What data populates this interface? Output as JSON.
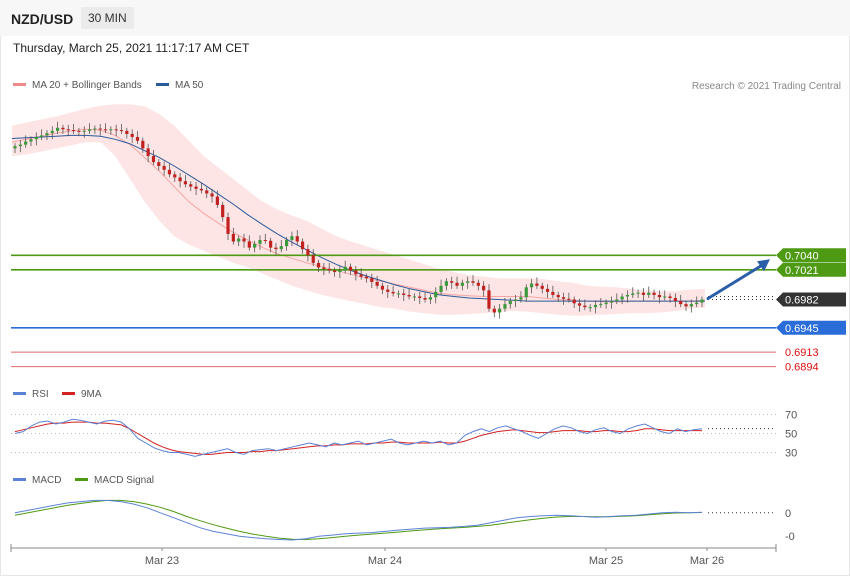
{
  "header": {
    "pair": "NZD/USD",
    "timeframe": "30 MIN",
    "timestamp": "Thursday, March 25, 2021 11:17:17 AM CET",
    "credit": "Research © 2021 Trading Central"
  },
  "colors": {
    "bollinger": "#f7a5a5",
    "band_fill": "#fde0e0",
    "ma50": "#2a5a9a",
    "up_candle": "#3a9a3a",
    "down_candle": "#c32020",
    "resistance": "#4f9a14",
    "pivot": "#2a6dd9",
    "support": "#e06a6a",
    "last": "#333333",
    "rsi": "#5c82d6",
    "rsi_ma": "#d32222",
    "macd": "#5c82d6",
    "macd_signal": "#4f9a14",
    "arrow": "#2a5ea8"
  },
  "legends": {
    "price": [
      {
        "label": "MA 20 + Bollinger Bands",
        "color": "#f08b8b"
      },
      {
        "label": "MA 50",
        "color": "#2a5a9a"
      }
    ],
    "rsi": [
      {
        "label": "RSI",
        "color": "#5c82d6"
      },
      {
        "label": "9MA",
        "color": "#d32222"
      }
    ],
    "macd": [
      {
        "label": "MACD",
        "color": "#5c82d6"
      },
      {
        "label": "MACD Signal",
        "color": "#4f9a14"
      }
    ]
  },
  "chart_data": [
    {
      "type": "candlestick",
      "title": "NZD/USD",
      "x_labels": [
        "Mar 23",
        "Mar 24",
        "Mar 25",
        "Mar 26"
      ],
      "close": [
        0.7183,
        0.7185,
        0.7189,
        0.7192,
        0.7195,
        0.7197,
        0.72,
        0.7203,
        0.7207,
        0.7205,
        0.7204,
        0.7203,
        0.7202,
        0.7203,
        0.7205,
        0.7206,
        0.7205,
        0.7204,
        0.7205,
        0.7204,
        0.7203,
        0.7199,
        0.7195,
        0.719,
        0.718,
        0.717,
        0.7162,
        0.7157,
        0.7152,
        0.7146,
        0.7142,
        0.7137,
        0.7133,
        0.713,
        0.7127,
        0.7125,
        0.7121,
        0.7117,
        0.7106,
        0.709,
        0.7068,
        0.7058,
        0.7062,
        0.7058,
        0.705,
        0.7055,
        0.706,
        0.7059,
        0.705,
        0.7048,
        0.7052,
        0.706,
        0.7065,
        0.7058,
        0.7048,
        0.704,
        0.703,
        0.7024,
        0.7022,
        0.702,
        0.7018,
        0.702,
        0.7025,
        0.702,
        0.7015,
        0.7012,
        0.701,
        0.7005,
        0.7,
        0.6995,
        0.6992,
        0.699,
        0.699,
        0.6988,
        0.6986,
        0.6986,
        0.6984,
        0.6982,
        0.6985,
        0.6992,
        0.7,
        0.7006,
        0.7004,
        0.7,
        0.7004,
        0.7006,
        0.7004,
        0.7,
        0.6994,
        0.697,
        0.6965,
        0.697,
        0.6976,
        0.698,
        0.6982,
        0.6985,
        0.6998,
        0.7003,
        0.7,
        0.6996,
        0.6992,
        0.6988,
        0.6985,
        0.6983,
        0.6982,
        0.6977,
        0.6974,
        0.6972,
        0.6972,
        0.6975,
        0.6976,
        0.6978,
        0.698,
        0.6982,
        0.6986,
        0.6988,
        0.699,
        0.6991,
        0.6988,
        0.6991,
        0.6988,
        0.6985,
        0.6986,
        0.6984,
        0.698,
        0.6976,
        0.6973,
        0.6976,
        0.6978,
        0.6982
      ],
      "ma20_upper": [
        0.721,
        0.7214,
        0.7218,
        0.7222,
        0.7227,
        0.7232,
        0.7236,
        0.7238,
        0.7238,
        0.7235,
        0.7225,
        0.721,
        0.719,
        0.717,
        0.7155,
        0.714,
        0.7125,
        0.711,
        0.71,
        0.7092,
        0.7085,
        0.7075,
        0.7065,
        0.7058,
        0.7052,
        0.7046,
        0.704,
        0.7034,
        0.7028,
        0.7022,
        0.7018,
        0.7014,
        0.7012,
        0.701,
        0.701,
        0.701,
        0.7009,
        0.7006,
        0.7004,
        0.7,
        0.6999,
        0.6998,
        0.6996,
        0.6994,
        0.6993,
        0.6993,
        0.6995,
        0.6996
      ],
      "ma20_lower": [
        0.717,
        0.7172,
        0.7176,
        0.718,
        0.7184,
        0.7188,
        0.7188,
        0.717,
        0.714,
        0.711,
        0.7085,
        0.7065,
        0.7054,
        0.7046,
        0.7038,
        0.703,
        0.7024,
        0.7016,
        0.7008,
        0.7,
        0.6994,
        0.6988,
        0.6984,
        0.698,
        0.6976,
        0.6972,
        0.697,
        0.6966,
        0.6964,
        0.6962,
        0.6962,
        0.6963,
        0.6964,
        0.6966,
        0.6967,
        0.6966,
        0.6964,
        0.6962,
        0.6961,
        0.6961,
        0.6962,
        0.6963,
        0.6964,
        0.6964,
        0.6965,
        0.6967,
        0.697,
        0.6972
      ],
      "ma20": [
        0.7188,
        0.7192,
        0.7196,
        0.72,
        0.7203,
        0.7205,
        0.7204,
        0.7197,
        0.7185,
        0.7168,
        0.715,
        0.713,
        0.711,
        0.7095,
        0.7082,
        0.707,
        0.706,
        0.705,
        0.7042,
        0.7036,
        0.703,
        0.7025,
        0.702,
        0.7015,
        0.701,
        0.7006,
        0.7002,
        0.6998,
        0.6994,
        0.699,
        0.6988,
        0.6987,
        0.6986,
        0.6986,
        0.6986,
        0.6986,
        0.6984,
        0.6982,
        0.6981,
        0.698,
        0.6979,
        0.6979,
        0.698,
        0.698,
        0.698,
        0.698,
        0.698,
        0.6981
      ],
      "ma50": [
        0.7193,
        0.7194,
        0.7195,
        0.7196,
        0.7197,
        0.7197,
        0.7196,
        0.7192,
        0.7186,
        0.7177,
        0.7168,
        0.7157,
        0.7145,
        0.7133,
        0.712,
        0.7107,
        0.7093,
        0.708,
        0.7068,
        0.7057,
        0.7047,
        0.7037,
        0.7028,
        0.702,
        0.7013,
        0.7007,
        0.7001,
        0.6996,
        0.6992,
        0.6988,
        0.6986,
        0.6984,
        0.6983,
        0.6982,
        0.6981,
        0.698,
        0.698,
        0.698,
        0.698,
        0.698,
        0.698,
        0.698,
        0.698,
        0.698,
        0.698,
        0.698,
        0.698,
        0.698
      ],
      "levels": {
        "resistance": [
          "0.7040",
          "0.7021"
        ],
        "last": "0.6982",
        "pivot": "0.6945",
        "support": [
          "0.6913",
          "0.6894"
        ]
      },
      "ylim": [
        0.687,
        0.725
      ],
      "ticks": [
        "0.7040",
        "0.7021",
        "0.6982",
        "0.6945",
        "0.6913",
        "0.6894"
      ]
    },
    {
      "type": "line",
      "title": "RSI",
      "series": [
        {
          "name": "RSI",
          "values": [
            50,
            52,
            58,
            62,
            63,
            60,
            62,
            65,
            64,
            62,
            60,
            63,
            64,
            62,
            55,
            45,
            40,
            35,
            32,
            30,
            30,
            28,
            26,
            28,
            30,
            32,
            34,
            30,
            28,
            32,
            33,
            34,
            32,
            34,
            36,
            38,
            40,
            38,
            36,
            40,
            38,
            40,
            42,
            38,
            40,
            42,
            44,
            40,
            38,
            40,
            42,
            40,
            42,
            38,
            40,
            48,
            52,
            55,
            52,
            56,
            58,
            55,
            52,
            48,
            45,
            50,
            55,
            58,
            56,
            52,
            50,
            54,
            56,
            52,
            50,
            55,
            58,
            60,
            56,
            52,
            50,
            55,
            52,
            54,
            55
          ]
        },
        {
          "name": "9MA",
          "values": [
            52,
            54,
            56,
            58,
            60,
            61,
            61,
            62,
            62,
            62,
            61,
            61,
            60,
            59,
            55,
            50,
            45,
            40,
            36,
            33,
            31,
            30,
            29,
            28,
            28,
            29,
            30,
            30,
            30,
            31,
            31,
            32,
            32,
            33,
            34,
            35,
            36,
            37,
            37,
            38,
            38,
            39,
            39,
            39,
            40,
            40,
            41,
            41,
            40,
            40,
            40,
            40,
            41,
            40,
            40,
            42,
            45,
            48,
            50,
            52,
            53,
            54,
            53,
            52,
            51,
            51,
            52,
            53,
            53,
            53,
            52,
            52,
            53,
            53,
            52,
            52,
            53,
            55,
            55,
            54,
            53,
            53,
            53,
            53,
            53
          ]
        }
      ],
      "ticks": [
        "70",
        "50",
        "30"
      ],
      "ylim": [
        20,
        80
      ]
    },
    {
      "type": "line",
      "title": "MACD",
      "series": [
        {
          "name": "MACD",
          "values": [
            0.0,
            0.1,
            0.2,
            0.3,
            0.4,
            0.45,
            0.5,
            0.5,
            0.45,
            0.35,
            0.2,
            0.0,
            -0.2,
            -0.4,
            -0.6,
            -0.75,
            -0.85,
            -0.95,
            -1.0,
            -1.05,
            -1.08,
            -1.1,
            -1.05,
            -0.95,
            -0.9,
            -0.85,
            -0.82,
            -0.8,
            -0.75,
            -0.7,
            -0.66,
            -0.62,
            -0.6,
            -0.58,
            -0.55,
            -0.5,
            -0.4,
            -0.3,
            -0.2,
            -0.15,
            -0.12,
            -0.1,
            -0.12,
            -0.15,
            -0.18,
            -0.15,
            -0.12,
            -0.1,
            -0.05,
            0.0,
            0.02,
            0.0,
            0.02
          ]
        },
        {
          "name": "MACD Signal",
          "values": [
            -0.1,
            0.0,
            0.1,
            0.2,
            0.3,
            0.38,
            0.45,
            0.5,
            0.5,
            0.45,
            0.35,
            0.22,
            0.05,
            -0.15,
            -0.32,
            -0.48,
            -0.62,
            -0.75,
            -0.86,
            -0.95,
            -1.02,
            -1.07,
            -1.08,
            -1.05,
            -1.0,
            -0.95,
            -0.9,
            -0.86,
            -0.82,
            -0.78,
            -0.73,
            -0.69,
            -0.65,
            -0.62,
            -0.59,
            -0.55,
            -0.5,
            -0.43,
            -0.35,
            -0.28,
            -0.22,
            -0.17,
            -0.15,
            -0.15,
            -0.16,
            -0.16,
            -0.14,
            -0.12,
            -0.08,
            -0.04,
            -0.01,
            0.0,
            0.01
          ]
        }
      ],
      "ticks": [
        "0",
        "-0"
      ],
      "ylim": [
        -1.3,
        1.0
      ]
    }
  ]
}
